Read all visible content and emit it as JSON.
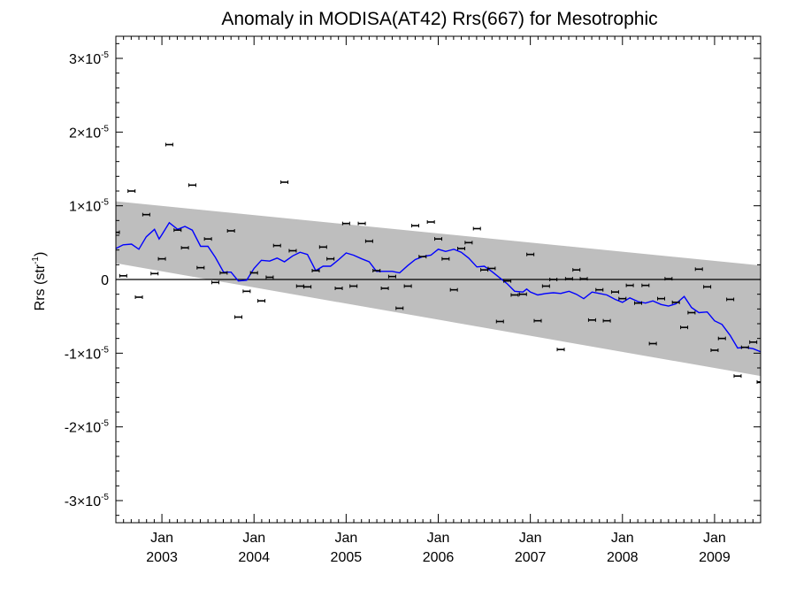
{
  "chart_data": {
    "type": "scatter",
    "title": "Anomaly in MODISA(AT42) Rrs(667) for Mesotrophic",
    "ylabel": "Rrs (str",
    "ylabel_sup": "-1",
    "ylabel_close": ")",
    "ylim": [
      -3.3e-05,
      3.3e-05
    ],
    "xlim": [
      2002.5,
      2009.5
    ],
    "x_ticks": [
      {
        "x": 2003.0,
        "month": "Jan",
        "year": "2003"
      },
      {
        "x": 2004.0,
        "month": "Jan",
        "year": "2004"
      },
      {
        "x": 2005.0,
        "month": "Jan",
        "year": "2005"
      },
      {
        "x": 2006.0,
        "month": "Jan",
        "year": "2006"
      },
      {
        "x": 2007.0,
        "month": "Jan",
        "year": "2007"
      },
      {
        "x": 2008.0,
        "month": "Jan",
        "year": "2008"
      },
      {
        "x": 2009.0,
        "month": "Jan",
        "year": "2009"
      }
    ],
    "y_ticks": [
      {
        "value": 3e-05,
        "mant": "3×10",
        "exp": "-5"
      },
      {
        "value": 2e-05,
        "mant": "2×10",
        "exp": "-5"
      },
      {
        "value": 1e-05,
        "mant": "1×10",
        "exp": "-5"
      },
      {
        "value": 0,
        "mant": "0",
        "exp": ""
      },
      {
        "value": -1e-05,
        "mant": "-1×10",
        "exp": "-5"
      },
      {
        "value": -2e-05,
        "mant": "-2×10",
        "exp": "-5"
      },
      {
        "value": -3e-05,
        "mant": "-3×10",
        "exp": "-5"
      }
    ],
    "band": {
      "upper_start": 1.06e-05,
      "upper_end": 1.9e-06,
      "lower_start": 2.2e-06,
      "lower_end": -1.31e-05
    },
    "points": [
      {
        "x": 2002.5,
        "y": 6.4e-06
      },
      {
        "x": 2002.58,
        "y": 5e-07
      },
      {
        "x": 2002.67,
        "y": 1.2e-05
      },
      {
        "x": 2002.75,
        "y": -2.4e-06
      },
      {
        "x": 2002.83,
        "y": 8.8e-06
      },
      {
        "x": 2002.92,
        "y": 8e-07
      },
      {
        "x": 2003.0,
        "y": 2.8e-06
      },
      {
        "x": 2003.08,
        "y": 1.83e-05
      },
      {
        "x": 2003.17,
        "y": 6.7e-06
      },
      {
        "x": 2003.25,
        "y": 4.3e-06
      },
      {
        "x": 2003.33,
        "y": 1.28e-05
      },
      {
        "x": 2003.42,
        "y": 1.6e-06
      },
      {
        "x": 2003.5,
        "y": 5.5e-06
      },
      {
        "x": 2003.58,
        "y": -4e-07
      },
      {
        "x": 2003.67,
        "y": 9e-07
      },
      {
        "x": 2003.75,
        "y": 6.6e-06
      },
      {
        "x": 2003.83,
        "y": -5.1e-06
      },
      {
        "x": 2003.92,
        "y": -1.6e-06
      },
      {
        "x": 2004.0,
        "y": 9e-07
      },
      {
        "x": 2004.08,
        "y": -2.9e-06
      },
      {
        "x": 2004.17,
        "y": 3e-07
      },
      {
        "x": 2004.25,
        "y": 4.6e-06
      },
      {
        "x": 2004.33,
        "y": 1.32e-05
      },
      {
        "x": 2004.42,
        "y": 3.9e-06
      },
      {
        "x": 2004.5,
        "y": -9e-07
      },
      {
        "x": 2004.58,
        "y": -1e-06
      },
      {
        "x": 2004.67,
        "y": 1.2e-06
      },
      {
        "x": 2004.75,
        "y": 4.4e-06
      },
      {
        "x": 2004.83,
        "y": 2.8e-06
      },
      {
        "x": 2004.92,
        "y": -1.2e-06
      },
      {
        "x": 2005.0,
        "y": 7.6e-06
      },
      {
        "x": 2005.08,
        "y": -9e-07
      },
      {
        "x": 2005.17,
        "y": 7.6e-06
      },
      {
        "x": 2005.25,
        "y": 5.2e-06
      },
      {
        "x": 2005.33,
        "y": 1.2e-06
      },
      {
        "x": 2005.42,
        "y": -1.2e-06
      },
      {
        "x": 2005.5,
        "y": 4e-07
      },
      {
        "x": 2005.58,
        "y": -3.9e-06
      },
      {
        "x": 2005.67,
        "y": -9e-07
      },
      {
        "x": 2005.75,
        "y": 7.3e-06
      },
      {
        "x": 2005.83,
        "y": 3.1e-06
      },
      {
        "x": 2005.92,
        "y": 7.8e-06
      },
      {
        "x": 2006.0,
        "y": 5.5e-06
      },
      {
        "x": 2006.08,
        "y": 2.8e-06
      },
      {
        "x": 2006.17,
        "y": -1.4e-06
      },
      {
        "x": 2006.25,
        "y": 4.2e-06
      },
      {
        "x": 2006.33,
        "y": 5e-06
      },
      {
        "x": 2006.42,
        "y": 6.9e-06
      },
      {
        "x": 2006.5,
        "y": 1.3e-06
      },
      {
        "x": 2006.58,
        "y": 1.5e-06
      },
      {
        "x": 2006.67,
        "y": -5.7e-06
      },
      {
        "x": 2006.75,
        "y": -2e-07
      },
      {
        "x": 2006.83,
        "y": -2.1e-06
      },
      {
        "x": 2006.92,
        "y": -2e-06
      },
      {
        "x": 2007.0,
        "y": 3.4e-06
      },
      {
        "x": 2007.08,
        "y": -5.6e-06
      },
      {
        "x": 2007.17,
        "y": -9e-07
      },
      {
        "x": 2007.25,
        "y": 0
      },
      {
        "x": 2007.33,
        "y": -9.5e-06
      },
      {
        "x": 2007.42,
        "y": 1e-07
      },
      {
        "x": 2007.5,
        "y": 1.3e-06
      },
      {
        "x": 2007.58,
        "y": 1e-07
      },
      {
        "x": 2007.67,
        "y": -5.5e-06
      },
      {
        "x": 2007.75,
        "y": -1.4e-06
      },
      {
        "x": 2007.83,
        "y": -5.6e-06
      },
      {
        "x": 2007.92,
        "y": -1.7e-06
      },
      {
        "x": 2008.0,
        "y": -2.6e-06
      },
      {
        "x": 2008.08,
        "y": -8e-07
      },
      {
        "x": 2008.17,
        "y": -3.2e-06
      },
      {
        "x": 2008.25,
        "y": -8e-07
      },
      {
        "x": 2008.33,
        "y": -8.7e-06
      },
      {
        "x": 2008.42,
        "y": -2.6e-06
      },
      {
        "x": 2008.5,
        "y": 1e-07
      },
      {
        "x": 2008.58,
        "y": -3.1e-06
      },
      {
        "x": 2008.67,
        "y": -6.5e-06
      },
      {
        "x": 2008.75,
        "y": -4.5e-06
      },
      {
        "x": 2008.83,
        "y": 1.4e-06
      },
      {
        "x": 2008.92,
        "y": -1e-06
      },
      {
        "x": 2009.0,
        "y": -9.6e-06
      },
      {
        "x": 2009.08,
        "y": -8e-06
      },
      {
        "x": 2009.17,
        "y": -2.7e-06
      },
      {
        "x": 2009.25,
        "y": -1.31e-05
      },
      {
        "x": 2009.33,
        "y": -9.2e-06
      },
      {
        "x": 2009.42,
        "y": -8.5e-06
      },
      {
        "x": 2009.5,
        "y": -1.39e-05
      }
    ],
    "smoothed_line": {
      "x": [
        2002.5,
        2002.58,
        2002.67,
        2002.75,
        2002.83,
        2002.92,
        2002.97,
        2003.0,
        2003.08,
        2003.17,
        2003.25,
        2003.33,
        2003.42,
        2003.5,
        2003.58,
        2003.67,
        2003.75,
        2003.83,
        2003.92,
        2004.0,
        2004.08,
        2004.17,
        2004.25,
        2004.33,
        2004.42,
        2004.5,
        2004.58,
        2004.67,
        2004.75,
        2004.83,
        2004.92,
        2005.0,
        2005.08,
        2005.17,
        2005.25,
        2005.33,
        2005.42,
        2005.5,
        2005.58,
        2005.67,
        2005.75,
        2005.83,
        2005.92,
        2006.0,
        2006.08,
        2006.17,
        2006.25,
        2006.33,
        2006.42,
        2006.5,
        2006.58,
        2006.67,
        2006.75,
        2006.83,
        2006.92,
        2006.96,
        2007.0,
        2007.08,
        2007.17,
        2007.25,
        2007.33,
        2007.42,
        2007.5,
        2007.58,
        2007.67,
        2007.75,
        2007.83,
        2007.92,
        2008.0,
        2008.08,
        2008.17,
        2008.25,
        2008.33,
        2008.42,
        2008.5,
        2008.58,
        2008.67,
        2008.75,
        2008.83,
        2008.92,
        2009.0,
        2009.08,
        2009.17,
        2009.25,
        2009.33,
        2009.42,
        2009.5
      ],
      "y": [
        4.2e-06,
        4.7e-06,
        4.8e-06,
        4.1e-06,
        5.8e-06,
        6.8e-06,
        5.5e-06,
        6.1e-06,
        7.7e-06,
        6.8e-06,
        7.2e-06,
        6.7e-06,
        4.5e-06,
        4.5e-06,
        3e-06,
        1e-06,
        1e-06,
        -2e-07,
        -1e-07,
        1.5e-06,
        2.6e-06,
        2.5e-06,
        2.9e-06,
        2.4e-06,
        3.2e-06,
        3.7e-06,
        3.4e-06,
        1.2e-06,
        1.8e-06,
        1.8e-06,
        2.7e-06,
        3.6e-06,
        3.3e-06,
        2.8e-06,
        2.4e-06,
        1.1e-06,
        1.1e-06,
        1.1e-06,
        9e-07,
        1.9e-06,
        2.7e-06,
        3.1e-06,
        3.3e-06,
        4.1e-06,
        3.8e-06,
        4.1e-06,
        3.7e-06,
        2.9e-06,
        1.7e-06,
        1.8e-06,
        1.1e-06,
        2e-07,
        -6e-07,
        -1.6e-06,
        -1.7e-06,
        -1.3e-06,
        -1.7e-06,
        -2.1e-06,
        -1.9e-06,
        -1.8e-06,
        -1.9e-06,
        -1.6e-06,
        -2e-06,
        -2.6e-06,
        -1.7e-06,
        -1.9e-06,
        -2.1e-06,
        -2.7e-06,
        -3.1e-06,
        -2.5e-06,
        -3e-06,
        -3.2e-06,
        -2.9e-06,
        -3.4e-06,
        -3.6e-06,
        -3.3e-06,
        -2.3e-06,
        -3.8e-06,
        -4.5e-06,
        -4.4e-06,
        -5.6e-06,
        -6.1e-06,
        -7.6e-06,
        -9.3e-06,
        -9.2e-06,
        -9.4e-06,
        -9.8e-06
      ]
    },
    "colors": {
      "band": "#bebebe",
      "line": "#0000ff",
      "points": "#000000",
      "zero_line": "#000000"
    }
  }
}
